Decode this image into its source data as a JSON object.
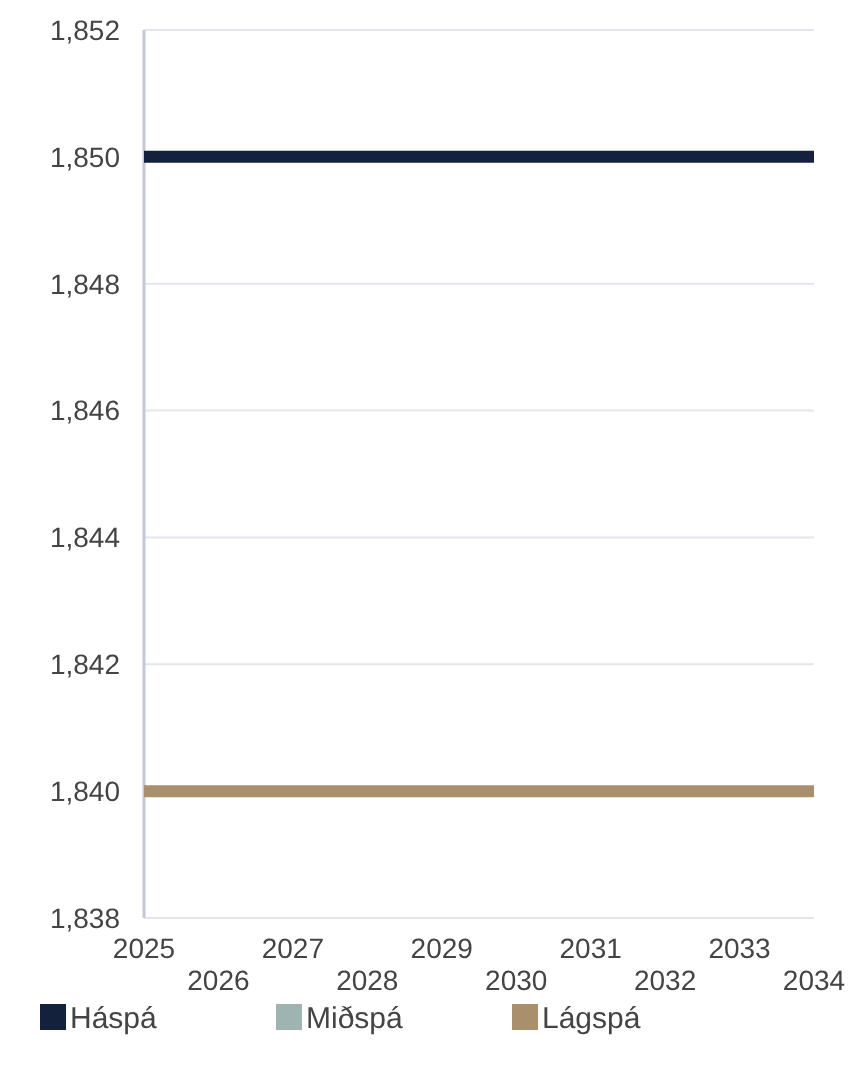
{
  "chart_data": {
    "type": "line",
    "categories": [
      "2025",
      "2026",
      "2027",
      "2028",
      "2029",
      "2030",
      "2031",
      "2032",
      "2033",
      "2034"
    ],
    "series": [
      {
        "name": "Háspá",
        "color": "#14213d",
        "values": [
          1850,
          1850,
          1850,
          1850,
          1850,
          1850,
          1850,
          1850,
          1850,
          1850
        ]
      },
      {
        "name": "Miðspá",
        "color": "#9fb4b0",
        "values": [
          null,
          null,
          null,
          null,
          null,
          null,
          null,
          null,
          null,
          null
        ]
      },
      {
        "name": "Lágspá",
        "color": "#a98f6c",
        "values": [
          1840,
          1840,
          1840,
          1840,
          1840,
          1840,
          1840,
          1840,
          1840,
          1840
        ]
      }
    ],
    "ylim": [
      1838,
      1852
    ],
    "yticks": [
      {
        "value": 1838,
        "label": "1,838"
      },
      {
        "value": 1840,
        "label": "1,840"
      },
      {
        "value": 1842,
        "label": "1,842"
      },
      {
        "value": 1844,
        "label": "1,844"
      },
      {
        "value": 1846,
        "label": "1,846"
      },
      {
        "value": 1848,
        "label": "1,848"
      },
      {
        "value": 1850,
        "label": "1,850"
      },
      {
        "value": 1852,
        "label": "1,852"
      }
    ],
    "grid": "y",
    "legend": "bottom",
    "marker": "none",
    "line_style": "solid"
  }
}
